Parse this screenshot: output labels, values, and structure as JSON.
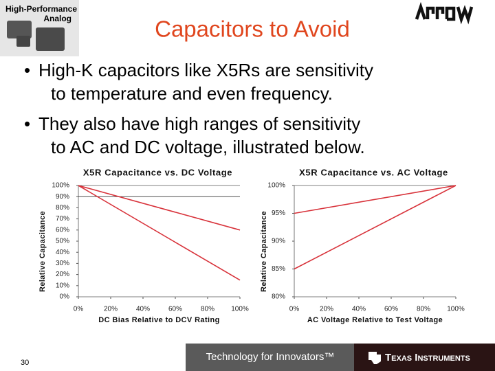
{
  "header": {
    "logo_lines": [
      "High-Performance",
      "Analog"
    ],
    "title": "Capacitors to Avoid"
  },
  "bullets": [
    [
      "High-K capacitors like X5Rs are sensitivity",
      "to temperature and even frequency."
    ],
    [
      "They also have high ranges of sensitivity",
      "to AC and DC voltage, illustrated below."
    ]
  ],
  "chart_data": [
    {
      "type": "line",
      "title": "X5R Capacitance vs. DC Voltage",
      "x_label": "DC Bias Relative to DCV Rating",
      "y_label": "Relative Capacitance",
      "x": [
        0,
        100
      ],
      "series": [
        {
          "color": "#d8323a",
          "values": [
            100,
            60
          ]
        },
        {
          "color": "#d8323a",
          "values": [
            100,
            15
          ]
        }
      ],
      "xlim": [
        0,
        100
      ],
      "ylim": [
        0,
        100
      ],
      "xticks": [
        {
          "value": 0,
          "label": "0%"
        },
        {
          "value": 20,
          "label": "20%"
        },
        {
          "value": 40,
          "label": "40%"
        },
        {
          "value": 60,
          "label": "60%"
        },
        {
          "value": 80,
          "label": "80%"
        },
        {
          "value": 100,
          "label": "100%"
        }
      ],
      "yticks": [
        {
          "value": 0,
          "label": "0%"
        },
        {
          "value": 10,
          "label": "10%"
        },
        {
          "value": 20,
          "label": "20%"
        },
        {
          "value": 30,
          "label": "30%"
        },
        {
          "value": 40,
          "label": "40%"
        },
        {
          "value": 50,
          "label": "50%"
        },
        {
          "value": 60,
          "label": "60%"
        },
        {
          "value": 70,
          "label": "70%"
        },
        {
          "value": 80,
          "label": "80%"
        },
        {
          "value": 90,
          "label": "90%"
        },
        {
          "value": 100,
          "label": "100%"
        }
      ],
      "reference_line": 90
    },
    {
      "type": "line",
      "title": "X5R Capacitance vs. AC Voltage",
      "x_label": "AC Voltage Relative to Test Voltage",
      "y_label": "Relative Capacitance",
      "x": [
        0,
        100
      ],
      "series": [
        {
          "color": "#d8323a",
          "values": [
            95,
            100
          ]
        },
        {
          "color": "#d8323a",
          "values": [
            85,
            100
          ]
        }
      ],
      "xlim": [
        0,
        100
      ],
      "ylim": [
        80,
        100
      ],
      "xticks": [
        {
          "value": 0,
          "label": "0%"
        },
        {
          "value": 20,
          "label": "20%"
        },
        {
          "value": 40,
          "label": "40%"
        },
        {
          "value": 60,
          "label": "60%"
        },
        {
          "value": 80,
          "label": "80%"
        },
        {
          "value": 100,
          "label": "100%"
        }
      ],
      "yticks": [
        {
          "value": 80,
          "label": "80%"
        },
        {
          "value": 85,
          "label": "85%"
        },
        {
          "value": 90,
          "label": "90%"
        },
        {
          "value": 95,
          "label": "95%"
        },
        {
          "value": 100,
          "label": "100%"
        }
      ]
    }
  ],
  "footer": {
    "page": "30",
    "tagline": "Technology for Innovators™",
    "company": "Texas Instruments"
  }
}
